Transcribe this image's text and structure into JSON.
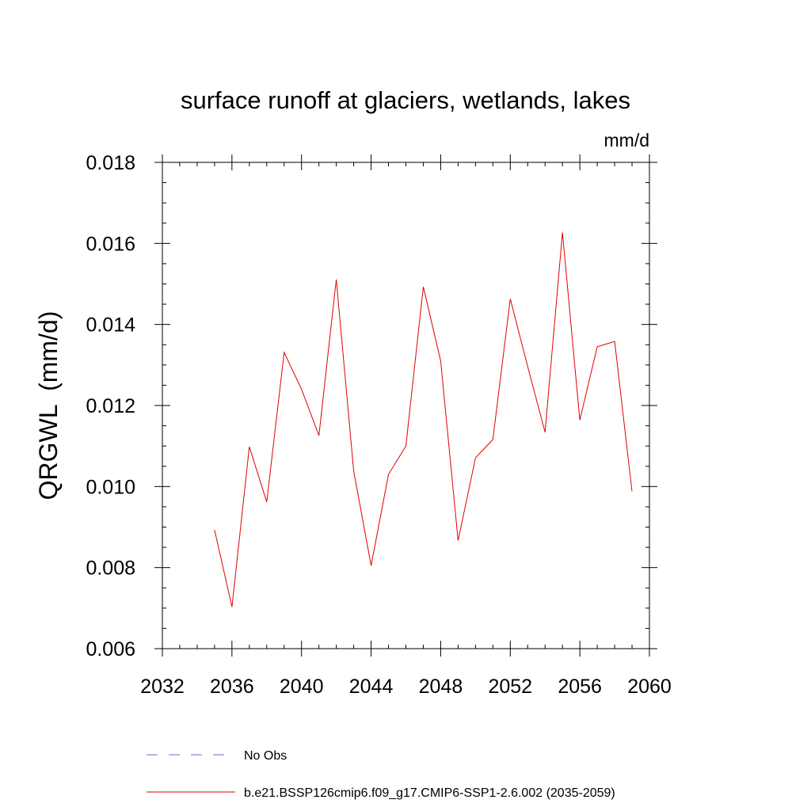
{
  "chart_data": {
    "type": "line",
    "title": "surface runoff at glaciers, wetlands, lakes",
    "units": "mm/d",
    "xlabel": "",
    "ylabel": "QRGWL  (mm/d)",
    "xlim": [
      2032,
      2060
    ],
    "ylim": [
      0.006,
      0.018
    ],
    "x_ticks": [
      2032,
      2036,
      2040,
      2044,
      2048,
      2052,
      2056,
      2060
    ],
    "x_tick_labels": [
      "2032",
      "2036",
      "2040",
      "2044",
      "2048",
      "2052",
      "2056",
      "2060"
    ],
    "y_ticks": [
      0.006,
      0.008,
      0.01,
      0.012,
      0.014,
      0.016,
      0.018
    ],
    "y_tick_labels": [
      "0.006",
      "0.008",
      "0.010",
      "0.012",
      "0.014",
      "0.016",
      "0.018"
    ],
    "grid": false,
    "legend_position": "bottom",
    "series": [
      {
        "name": "No Obs",
        "color": "#6f6fc8",
        "dash": "dashed",
        "x": [],
        "y": []
      },
      {
        "name": "b.e21.BSSP126cmip6.f09_g17.CMIP6-SSP1-2.6.002 (2035-2059)",
        "color": "#e00000",
        "dash": "solid",
        "x": [
          2035,
          2036,
          2037,
          2038,
          2039,
          2040,
          2041,
          2042,
          2043,
          2044,
          2045,
          2046,
          2047,
          2048,
          2049,
          2050,
          2051,
          2052,
          2053,
          2054,
          2055,
          2056,
          2057,
          2058,
          2059
        ],
        "y": [
          0.00893,
          0.00703,
          0.01098,
          0.00962,
          0.01331,
          0.0124,
          0.01126,
          0.01511,
          0.01038,
          0.00805,
          0.0103,
          0.011,
          0.01493,
          0.0131,
          0.00867,
          0.01071,
          0.01116,
          0.01463,
          0.01296,
          0.01134,
          0.01627,
          0.01164,
          0.01345,
          0.01358,
          0.00988
        ]
      }
    ]
  }
}
